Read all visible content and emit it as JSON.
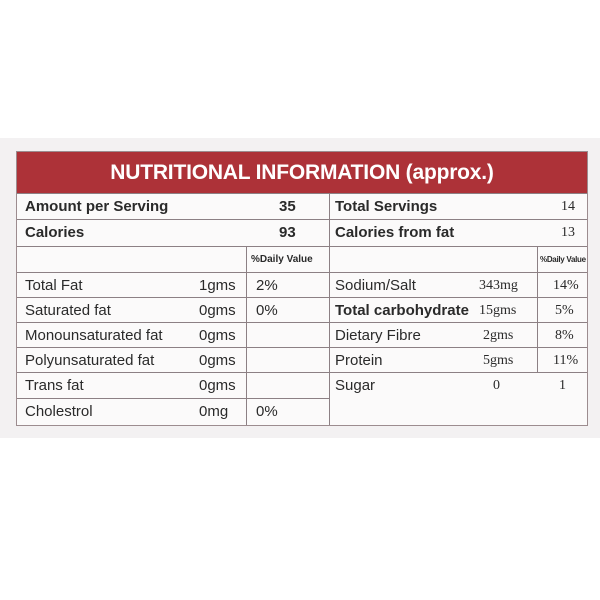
{
  "title": "NUTRITIONAL INFORMATION (approx.)",
  "summary": {
    "amount_label": "Amount per Serving",
    "amount_value": "35",
    "calories_label": "Calories",
    "calories_value": "93",
    "total_servings_label": "Total Servings",
    "total_servings_value": "14",
    "calories_fat_label": "Calories from fat",
    "calories_fat_value": "13"
  },
  "left_header": {
    "dv": "%Daily Value"
  },
  "right_header": {
    "dv": "%Daily Value"
  },
  "left_rows": [
    {
      "name": "Total Fat",
      "amount": "1gms",
      "dv": "2%"
    },
    {
      "name": "Saturated fat",
      "amount": "0gms",
      "dv": "0%"
    },
    {
      "name": "Monounsaturated fat",
      "amount": "0gms",
      "dv": ""
    },
    {
      "name": "Polyunsaturated fat",
      "amount": "0gms",
      "dv": ""
    },
    {
      "name": "Trans fat",
      "amount": "0gms",
      "dv": ""
    },
    {
      "name": "Cholestrol",
      "amount": "0mg",
      "dv": "0%"
    }
  ],
  "right_rows": [
    {
      "name": "Sodium/Salt",
      "amount": "343mg",
      "dv": "14%"
    },
    {
      "name": "Total carbohydrate",
      "amount": "15gms",
      "dv": "5%"
    },
    {
      "name": "Dietary Fibre",
      "amount": "2gms",
      "dv": "8%"
    },
    {
      "name": "Protein",
      "amount": "5gms",
      "dv": "11%"
    },
    {
      "name": "Sugar",
      "amount": "0",
      "dv": "1"
    }
  ],
  "colors": {
    "header_bg": "#ad3238",
    "header_text": "#ffffff",
    "rule": "#8c8084"
  }
}
